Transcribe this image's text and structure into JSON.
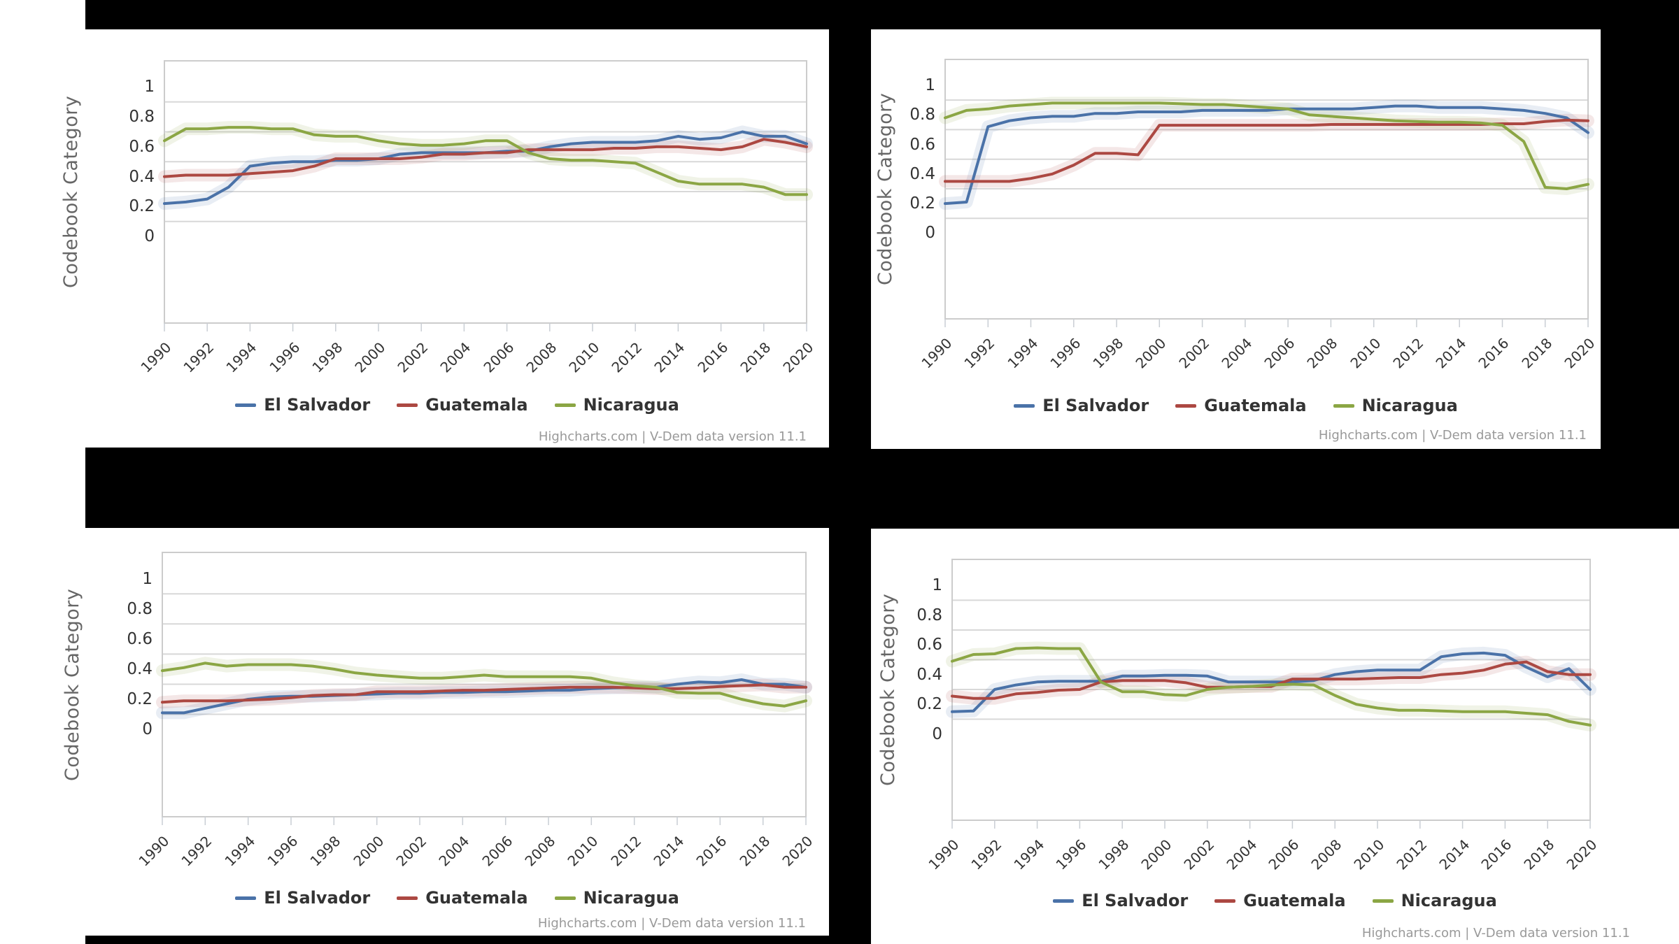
{
  "page": {
    "background_color": "#000000",
    "panel_color": "#ffffff",
    "gridline_color": "#d8d8d8",
    "axis_border_color": "#cccccc",
    "tick_color": "#c9ced4"
  },
  "chart_data": [
    {
      "position": "top-left",
      "type": "line",
      "title": "",
      "xlabel": "",
      "ylabel": "Codebook Category",
      "ylim": [
        0,
        1
      ],
      "xlim": [
        1990,
        2020
      ],
      "grid": "horizontal",
      "legend_position": "bottom",
      "y_tick_labels": [
        "1",
        "0.8",
        "0.6",
        "0.4",
        "0.2",
        "0"
      ],
      "x_tick_labels": [
        "1990",
        "1992",
        "1994",
        "1996",
        "1998",
        "2000",
        "2002",
        "2004",
        "2006",
        "2008",
        "2010",
        "2012",
        "2014",
        "2016",
        "2018",
        "2020"
      ],
      "x_years": [
        1990,
        1991,
        1992,
        1993,
        1994,
        1995,
        1996,
        1997,
        1998,
        1999,
        2000,
        2001,
        2002,
        2003,
        2004,
        2005,
        2006,
        2007,
        2008,
        2009,
        2010,
        2011,
        2012,
        2013,
        2014,
        2015,
        2016,
        2017,
        2018,
        2019,
        2020
      ],
      "series": [
        {
          "name": "El Salvador",
          "color": "#4A72A8",
          "confidence_band": true,
          "values": [
            0.22,
            0.23,
            0.25,
            0.33,
            0.47,
            0.49,
            0.5,
            0.5,
            0.51,
            0.51,
            0.52,
            0.55,
            0.56,
            0.56,
            0.56,
            0.56,
            0.57,
            0.57,
            0.6,
            0.62,
            0.63,
            0.63,
            0.63,
            0.64,
            0.67,
            0.65,
            0.66,
            0.7,
            0.67,
            0.67,
            0.62
          ]
        },
        {
          "name": "Guatemala",
          "color": "#AC4842",
          "confidence_band": true,
          "values": [
            0.4,
            0.41,
            0.41,
            0.41,
            0.42,
            0.43,
            0.44,
            0.47,
            0.52,
            0.52,
            0.52,
            0.52,
            0.53,
            0.55,
            0.55,
            0.56,
            0.56,
            0.58,
            0.58,
            0.58,
            0.58,
            0.59,
            0.59,
            0.6,
            0.6,
            0.59,
            0.58,
            0.6,
            0.65,
            0.63,
            0.6
          ]
        },
        {
          "name": "Nicaragua",
          "color": "#8BA644",
          "confidence_band": true,
          "values": [
            0.64,
            0.72,
            0.72,
            0.73,
            0.73,
            0.72,
            0.72,
            0.68,
            0.67,
            0.67,
            0.64,
            0.62,
            0.61,
            0.61,
            0.62,
            0.64,
            0.64,
            0.56,
            0.52,
            0.51,
            0.51,
            0.5,
            0.49,
            0.43,
            0.37,
            0.35,
            0.35,
            0.35,
            0.33,
            0.28,
            0.28
          ]
        }
      ],
      "credits": "Highcharts.com | V-Dem data version 11.1"
    },
    {
      "position": "top-right",
      "type": "line",
      "title": "",
      "xlabel": "",
      "ylabel": "Codebook Category",
      "ylim": [
        0,
        1
      ],
      "xlim": [
        1990,
        2020
      ],
      "grid": "horizontal",
      "legend_position": "bottom",
      "y_tick_labels": [
        "1",
        "0.8",
        "0.6",
        "0.4",
        "0.2",
        "0"
      ],
      "x_tick_labels": [
        "1990",
        "1992",
        "1994",
        "1996",
        "1998",
        "2000",
        "2002",
        "2004",
        "2006",
        "2008",
        "2010",
        "2012",
        "2014",
        "2016",
        "2018",
        "2020"
      ],
      "x_years": [
        1990,
        1991,
        1992,
        1993,
        1994,
        1995,
        1996,
        1997,
        1998,
        1999,
        2000,
        2001,
        2002,
        2003,
        2004,
        2005,
        2006,
        2007,
        2008,
        2009,
        2010,
        2011,
        2012,
        2013,
        2014,
        2015,
        2016,
        2017,
        2018,
        2019,
        2020
      ],
      "series": [
        {
          "name": "El Salvador",
          "color": "#4A72A8",
          "confidence_band": true,
          "values": [
            0.2,
            0.21,
            0.72,
            0.76,
            0.78,
            0.79,
            0.79,
            0.81,
            0.81,
            0.82,
            0.82,
            0.82,
            0.83,
            0.83,
            0.83,
            0.83,
            0.84,
            0.84,
            0.84,
            0.84,
            0.85,
            0.86,
            0.86,
            0.85,
            0.85,
            0.85,
            0.84,
            0.83,
            0.81,
            0.78,
            0.68
          ]
        },
        {
          "name": "Guatemala",
          "color": "#AC4842",
          "confidence_band": true,
          "values": [
            0.35,
            0.35,
            0.35,
            0.35,
            0.37,
            0.4,
            0.46,
            0.54,
            0.54,
            0.53,
            0.73,
            0.73,
            0.73,
            0.73,
            0.73,
            0.73,
            0.73,
            0.73,
            0.735,
            0.735,
            0.735,
            0.735,
            0.735,
            0.735,
            0.735,
            0.735,
            0.74,
            0.74,
            0.755,
            0.765,
            0.76
          ]
        },
        {
          "name": "Nicaragua",
          "color": "#8BA644",
          "confidence_band": true,
          "values": [
            0.78,
            0.83,
            0.84,
            0.86,
            0.87,
            0.88,
            0.88,
            0.88,
            0.88,
            0.88,
            0.88,
            0.875,
            0.87,
            0.87,
            0.86,
            0.85,
            0.84,
            0.8,
            0.79,
            0.78,
            0.77,
            0.76,
            0.755,
            0.75,
            0.75,
            0.745,
            0.73,
            0.62,
            0.31,
            0.3,
            0.33
          ]
        }
      ],
      "credits": "Highcharts.com | V-Dem data version 11.1"
    },
    {
      "position": "bottom-left",
      "type": "line",
      "title": "",
      "xlabel": "",
      "ylabel": "Codebook Category",
      "ylim": [
        0,
        1
      ],
      "xlim": [
        1990,
        2020
      ],
      "grid": "horizontal",
      "legend_position": "bottom",
      "y_tick_labels": [
        "1",
        "0.8",
        "0.6",
        "0.4",
        "0.2",
        "0"
      ],
      "x_tick_labels": [
        "1990",
        "1992",
        "1994",
        "1996",
        "1998",
        "2000",
        "2002",
        "2004",
        "2006",
        "2008",
        "2010",
        "2012",
        "2014",
        "2016",
        "2018",
        "2020"
      ],
      "x_years": [
        1990,
        1991,
        1992,
        1993,
        1994,
        1995,
        1996,
        1997,
        1998,
        1999,
        2000,
        2001,
        2002,
        2003,
        2004,
        2005,
        2006,
        2007,
        2008,
        2009,
        2010,
        2011,
        2012,
        2013,
        2014,
        2015,
        2016,
        2017,
        2018,
        2019,
        2020
      ],
      "series": [
        {
          "name": "El Salvador",
          "color": "#4A72A8",
          "confidence_band": true,
          "values": [
            0.11,
            0.11,
            0.14,
            0.17,
            0.2,
            0.215,
            0.22,
            0.22,
            0.225,
            0.23,
            0.235,
            0.24,
            0.24,
            0.245,
            0.245,
            0.25,
            0.25,
            0.255,
            0.26,
            0.26,
            0.27,
            0.275,
            0.28,
            0.28,
            0.3,
            0.315,
            0.31,
            0.33,
            0.3,
            0.3,
            0.28
          ]
        },
        {
          "name": "Guatemala",
          "color": "#AC4842",
          "confidence_band": true,
          "values": [
            0.18,
            0.19,
            0.19,
            0.19,
            0.195,
            0.2,
            0.21,
            0.225,
            0.23,
            0.23,
            0.25,
            0.25,
            0.25,
            0.255,
            0.26,
            0.26,
            0.265,
            0.27,
            0.275,
            0.28,
            0.28,
            0.28,
            0.275,
            0.27,
            0.27,
            0.275,
            0.285,
            0.29,
            0.295,
            0.28,
            0.28
          ]
        },
        {
          "name": "Nicaragua",
          "color": "#8BA644",
          "confidence_band": true,
          "values": [
            0.39,
            0.41,
            0.44,
            0.42,
            0.43,
            0.43,
            0.43,
            0.42,
            0.4,
            0.375,
            0.36,
            0.35,
            0.34,
            0.34,
            0.35,
            0.36,
            0.35,
            0.35,
            0.35,
            0.35,
            0.34,
            0.31,
            0.29,
            0.28,
            0.245,
            0.24,
            0.24,
            0.2,
            0.17,
            0.155,
            0.19
          ]
        }
      ],
      "credits": "Highcharts.com | V-Dem data version 11.1"
    },
    {
      "position": "bottom-right",
      "type": "line",
      "title": "",
      "xlabel": "",
      "ylabel": "Codebook Category",
      "ylim": [
        0,
        1
      ],
      "xlim": [
        1990,
        2020
      ],
      "grid": "horizontal",
      "legend_position": "bottom",
      "y_tick_labels": [
        "1",
        "0.8",
        "0.6",
        "0.4",
        "0.2",
        "0"
      ],
      "x_tick_labels": [
        "1990",
        "1992",
        "1994",
        "1996",
        "1998",
        "2000",
        "2002",
        "2004",
        "2006",
        "2008",
        "2010",
        "2012",
        "2014",
        "2016",
        "2018",
        "2020"
      ],
      "x_years": [
        1990,
        1991,
        1992,
        1993,
        1994,
        1995,
        1996,
        1997,
        1998,
        1999,
        2000,
        2001,
        2002,
        2003,
        2004,
        2005,
        2006,
        2007,
        2008,
        2009,
        2010,
        2011,
        2012,
        2013,
        2014,
        2015,
        2016,
        2017,
        2018,
        2019,
        2020
      ],
      "series": [
        {
          "name": "El Salvador",
          "color": "#4A72A8",
          "confidence_band": true,
          "values": [
            0.15,
            0.155,
            0.3,
            0.33,
            0.35,
            0.355,
            0.355,
            0.355,
            0.39,
            0.39,
            0.395,
            0.395,
            0.39,
            0.35,
            0.35,
            0.35,
            0.35,
            0.36,
            0.4,
            0.42,
            0.43,
            0.43,
            0.43,
            0.52,
            0.54,
            0.545,
            0.53,
            0.45,
            0.385,
            0.44,
            0.3
          ]
        },
        {
          "name": "Guatemala",
          "color": "#AC4842",
          "confidence_band": true,
          "values": [
            0.255,
            0.24,
            0.24,
            0.27,
            0.28,
            0.295,
            0.3,
            0.35,
            0.36,
            0.36,
            0.36,
            0.345,
            0.315,
            0.315,
            0.32,
            0.32,
            0.37,
            0.37,
            0.37,
            0.37,
            0.375,
            0.38,
            0.38,
            0.4,
            0.41,
            0.43,
            0.47,
            0.485,
            0.42,
            0.4,
            0.4
          ]
        },
        {
          "name": "Nicaragua",
          "color": "#8BA644",
          "confidence_band": true,
          "values": [
            0.49,
            0.535,
            0.54,
            0.575,
            0.58,
            0.575,
            0.575,
            0.35,
            0.285,
            0.285,
            0.265,
            0.26,
            0.3,
            0.315,
            0.32,
            0.33,
            0.335,
            0.33,
            0.26,
            0.2,
            0.175,
            0.16,
            0.16,
            0.155,
            0.15,
            0.15,
            0.15,
            0.14,
            0.13,
            0.085,
            0.06
          ]
        }
      ],
      "credits": "Highcharts.com | V-Dem data version 11.1"
    }
  ]
}
